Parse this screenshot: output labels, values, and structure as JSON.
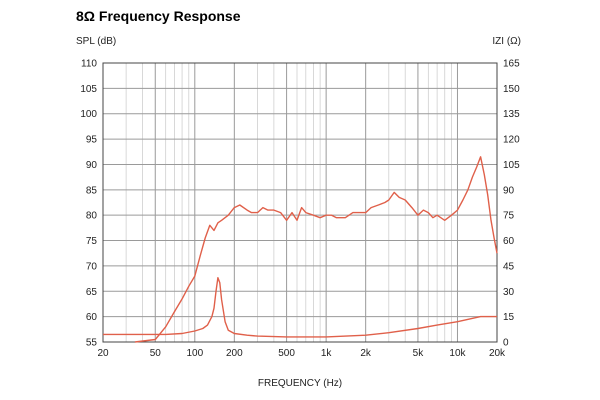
{
  "chart_data": {
    "type": "line",
    "title": "8Ω Frequency Response",
    "xlabel": "FREQUENCY (Hz)",
    "ylabel_left": "SPL (dB)",
    "ylabel_right": "IZI (Ω)",
    "x_scale": "log",
    "xlim": [
      20,
      20000
    ],
    "ylim_left": [
      55,
      110
    ],
    "ylim_right": [
      0,
      165
    ],
    "grid": true,
    "x_ticks": [
      {
        "v": 20,
        "label": "20"
      },
      {
        "v": 50,
        "label": "50"
      },
      {
        "v": 100,
        "label": "100"
      },
      {
        "v": 200,
        "label": "200"
      },
      {
        "v": 500,
        "label": "500"
      },
      {
        "v": 1000,
        "label": "1k"
      },
      {
        "v": 2000,
        "label": "2k"
      },
      {
        "v": 5000,
        "label": "5k"
      },
      {
        "v": 10000,
        "label": "10k"
      },
      {
        "v": 20000,
        "label": "20k"
      }
    ],
    "y_left_ticks": [
      "110",
      "105",
      "100",
      "95",
      "90",
      "85",
      "80",
      "75",
      "70",
      "65",
      "60",
      "55"
    ],
    "y_right_ticks": [
      "165",
      "150",
      "135",
      "120",
      "105",
      "90",
      "75",
      "60",
      "45",
      "30",
      "15",
      "0"
    ],
    "line_color": "#e0604a",
    "series": [
      {
        "axis": "left",
        "x": [
          35,
          50,
          60,
          70,
          80,
          90,
          100,
          110,
          120,
          130,
          140,
          150,
          160,
          180,
          200,
          220,
          250,
          270,
          300,
          330,
          360,
          400,
          450,
          500,
          550,
          600,
          650,
          700,
          800,
          900,
          1000,
          1100,
          1200,
          1400,
          1600,
          1800,
          2000,
          2200,
          2500,
          2800,
          3000,
          3300,
          3600,
          4000,
          4500,
          5000,
          5500,
          6000,
          6500,
          7000,
          8000,
          9000,
          10000,
          11000,
          12000,
          13000,
          14000,
          15000,
          16000,
          17000,
          18000,
          19000,
          20000
        ],
        "y": [
          55,
          55.5,
          58,
          61,
          63.5,
          66,
          68,
          72,
          75.5,
          78,
          77,
          78.5,
          79,
          80,
          81.5,
          82,
          81,
          80.5,
          80.5,
          81.5,
          81,
          81,
          80.5,
          79,
          80.5,
          79,
          81.5,
          80.5,
          80,
          79.5,
          80,
          80,
          79.5,
          79.5,
          80.5,
          80.5,
          80.5,
          81.5,
          82,
          82.5,
          83,
          84.5,
          83.5,
          83,
          81.5,
          80,
          81,
          80.5,
          79.5,
          80,
          79,
          80,
          81,
          83,
          85,
          87.5,
          89.5,
          91.5,
          88,
          84,
          79,
          75.5,
          72.5
        ]
      },
      {
        "axis": "right",
        "x": [
          20,
          40,
          60,
          80,
          100,
          115,
          125,
          135,
          140,
          145,
          150,
          155,
          160,
          170,
          180,
          200,
          250,
          300,
          500,
          1000,
          2000,
          3000,
          5000,
          7000,
          10000,
          15000,
          20000
        ],
        "y": [
          4.5,
          4.5,
          4.5,
          5,
          6.5,
          8,
          10,
          15,
          20,
          30,
          38,
          35,
          25,
          12,
          7,
          5,
          4,
          3.5,
          3,
          3,
          4,
          5.5,
          8,
          10,
          12,
          15,
          15
        ]
      }
    ]
  }
}
